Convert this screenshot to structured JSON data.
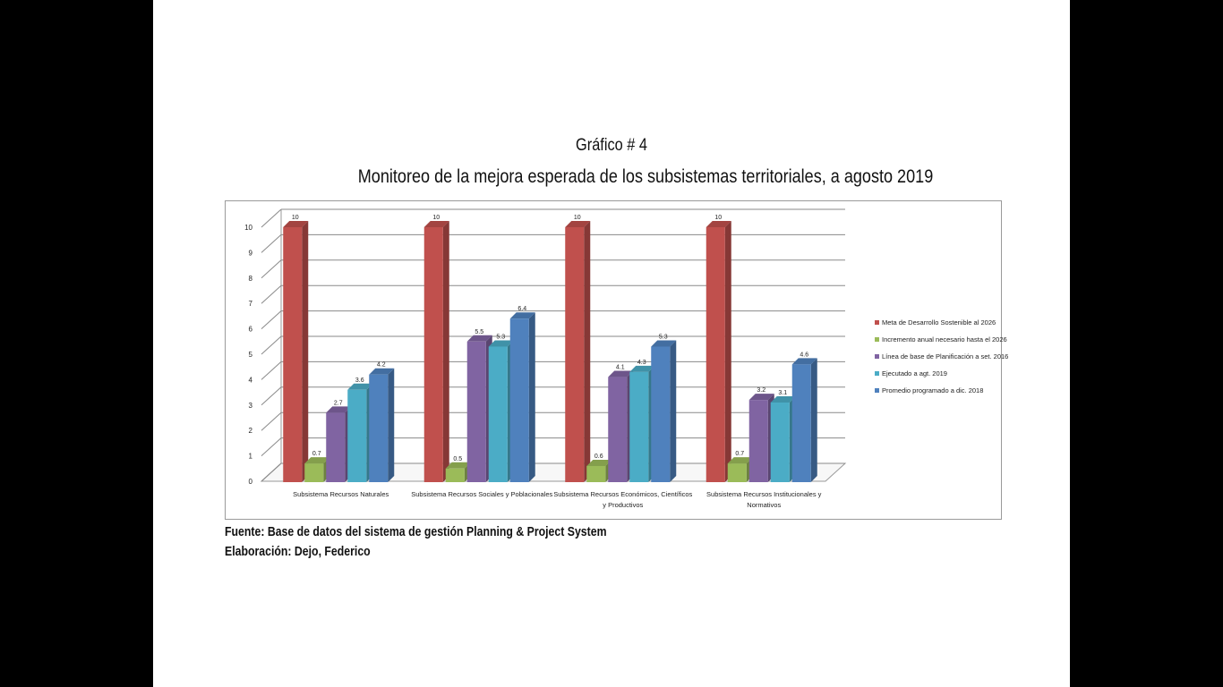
{
  "figure": {
    "number": "Gráfico # 4",
    "title": "Monitoreo de la mejora esperada de los subsistemas territoriales, a agosto 2019",
    "source": "Fuente: Base de datos del sistema de gestión Planning & Project System",
    "author": "Elaboración: Dejo, Federico"
  },
  "chart_data": {
    "type": "bar",
    "title": "",
    "xlabel": "",
    "ylabel": "",
    "ylim": [
      0,
      10
    ],
    "yticks": [
      "0",
      "1",
      "2",
      "3",
      "4",
      "5",
      "6",
      "7",
      "8",
      "9",
      "10"
    ],
    "grid": true,
    "legend_position": "right",
    "categories": [
      [
        "Subsistema Recursos Naturales"
      ],
      [
        "Subsistema Recursos Sociales y Poblacionales"
      ],
      [
        "Subsistema Recursos Económicos, Científicos",
        "y Productivos"
      ],
      [
        "Subsistema Recursos Institucionales y",
        "Normativos"
      ]
    ],
    "series": [
      {
        "name": "Meta de Desarrollo Sostenible al 2026",
        "color": "#c0504d",
        "values": [
          10,
          10,
          10,
          10
        ],
        "labels": [
          "10",
          "10",
          "10",
          "10"
        ]
      },
      {
        "name": "Incremento anual necesario hasta el 2026",
        "color": "#9bbb59",
        "values": [
          0.7,
          0.5,
          0.6,
          0.7
        ],
        "labels": [
          "0.7",
          "0.5",
          "0.6",
          "0.7"
        ]
      },
      {
        "name": "Línea de base de Planificación a set. 2016",
        "color": "#8064a2",
        "values": [
          2.7,
          5.5,
          4.1,
          3.2
        ],
        "labels": [
          "2.7",
          "5.5",
          "4.1",
          "3.2"
        ]
      },
      {
        "name": "Ejecutado a agt. 2019",
        "color": "#4bacc6",
        "values": [
          3.6,
          5.3,
          4.3,
          3.1
        ],
        "labels": [
          "3.6",
          "5.3",
          "4.3",
          "3.1"
        ]
      },
      {
        "name": "Promedio programado a dic. 2018",
        "color": "#4f81bd",
        "values": [
          4.2,
          6.4,
          5.3,
          4.6
        ],
        "labels": [
          "4.2",
          "6.4",
          "5.3",
          "4.6"
        ]
      }
    ]
  }
}
